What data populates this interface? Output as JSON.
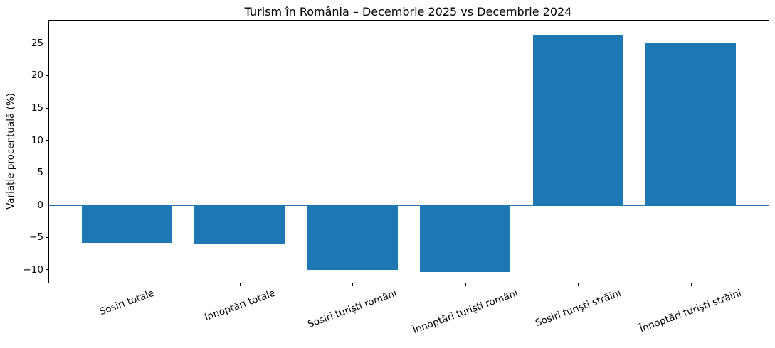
{
  "chart_data": {
    "type": "bar",
    "title": "Turism în România – Decembrie 2025 vs Decembrie 2024",
    "xlabel": "",
    "ylabel": "Variație procentuală (%)",
    "categories": [
      "Sosiri totale",
      "Înnoptări totale",
      "Sosiri turiști români",
      "Înnoptări turiști români",
      "Sosiri turiști străini",
      "Înnoptări turiști străini"
    ],
    "values": [
      -5.8,
      -6.1,
      -10.0,
      -10.3,
      26.3,
      25.1
    ],
    "yticks": [
      -10,
      -5,
      0,
      5,
      10,
      15,
      20,
      25
    ],
    "yticklabels": [
      "−10",
      "−5",
      "0",
      "5",
      "10",
      "15",
      "20",
      "25"
    ],
    "ylim": [
      -12,
      28.5
    ],
    "grid": false,
    "legend_position": "none",
    "x_tick_rotation_deg": 20,
    "bar_color": "#1f77b4",
    "zero_line_color": "#1f77b4",
    "axis_color": "#000000",
    "background_color": "#ffffff"
  }
}
